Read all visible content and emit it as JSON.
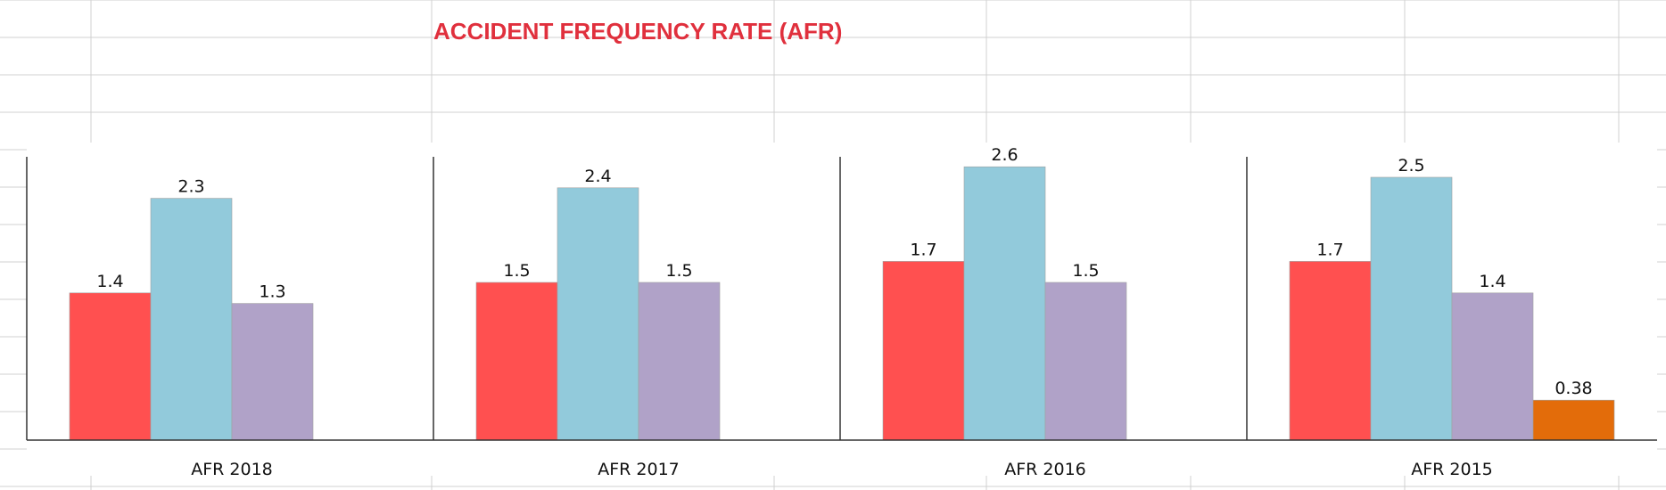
{
  "colors": {
    "title": "#e0303d",
    "series": [
      "#ff5050",
      "#92cadb",
      "#b0a2c8",
      "#e36c0a"
    ],
    "axis": "#333333",
    "gridline": "#d0d0d0"
  },
  "chart_data": {
    "type": "bar",
    "title": "ACCIDENT FREQUENCY RATE (AFR)",
    "xlabel": "",
    "ylabel": "",
    "ylim": [
      0,
      3
    ],
    "legend": "none",
    "categories": [
      "AFR  2018",
      "AFR 2017",
      "AFR 2016",
      "AFR 2015"
    ],
    "groups": [
      {
        "values": [
          1.4,
          2.3,
          1.3
        ],
        "labels": [
          "1.4",
          "2.3",
          "1.3"
        ]
      },
      {
        "values": [
          1.5,
          2.4,
          1.5
        ],
        "labels": [
          "1.5",
          "2.4",
          "1.5"
        ]
      },
      {
        "values": [
          1.7,
          2.6,
          1.5
        ],
        "labels": [
          "1.7",
          "2.6",
          "1.5"
        ]
      },
      {
        "values": [
          1.7,
          2.5,
          1.4,
          0.38
        ],
        "labels": [
          "1.7",
          "2.5",
          "1.4",
          "0.38"
        ]
      }
    ]
  }
}
